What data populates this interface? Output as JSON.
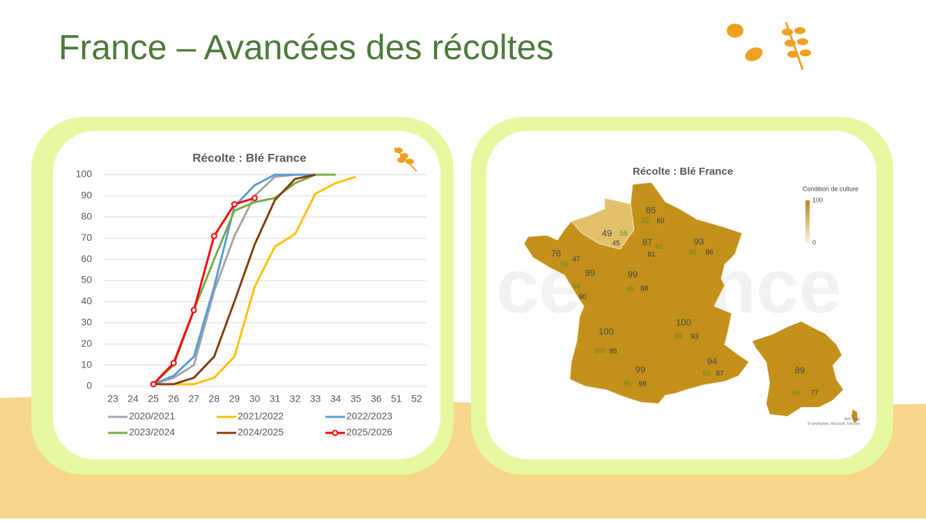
{
  "header": {
    "title": "France – Avancées des récoltes"
  },
  "chart_data": {
    "type": "line",
    "title": "Récolte : Blé France",
    "categories": [
      "23",
      "24",
      "25",
      "26",
      "27",
      "28",
      "29",
      "30",
      "31",
      "32",
      "33",
      "34",
      "35",
      "36",
      "51",
      "52"
    ],
    "ylim": [
      0,
      100
    ],
    "yticks": [
      0,
      10,
      20,
      30,
      40,
      50,
      60,
      70,
      80,
      90,
      100
    ],
    "grid": true,
    "legend": "bottom",
    "series": [
      {
        "name": "2020/2021",
        "color": "#a5a5a5",
        "values": [
          null,
          null,
          1,
          4,
          10,
          45,
          71,
          90,
          99,
          100,
          100,
          null,
          null,
          null,
          null,
          null
        ]
      },
      {
        "name": "2021/2022",
        "color": "#ffc000",
        "values": [
          null,
          null,
          1,
          1,
          1,
          4,
          14,
          47,
          66,
          72,
          91,
          96,
          99,
          null,
          null,
          null
        ]
      },
      {
        "name": "2022/2023",
        "color": "#5b9bd5",
        "values": [
          null,
          null,
          1,
          5,
          14,
          47,
          85,
          95,
          100,
          100,
          100,
          null,
          null,
          null,
          null,
          null
        ]
      },
      {
        "name": "2023/2024",
        "color": "#70ad47",
        "values": [
          null,
          null,
          1,
          10,
          36,
          60,
          83,
          87,
          89,
          96,
          100,
          100,
          null,
          null,
          null,
          null
        ]
      },
      {
        "name": "2024/2025",
        "color": "#843c0c",
        "values": [
          null,
          null,
          1,
          1,
          4,
          14,
          40,
          67,
          88,
          98,
          100,
          null,
          null,
          null,
          null,
          null
        ]
      },
      {
        "name": "2025/2026",
        "color": "#ff0000",
        "marker": true,
        "values": [
          null,
          null,
          1,
          11,
          36,
          71,
          86,
          89,
          null,
          null,
          null,
          null,
          null,
          null,
          null,
          null
        ]
      }
    ]
  },
  "map": {
    "title": "Récolte : Blé France",
    "color": "#c3901a",
    "legend_title": "Condition de culture",
    "legend_ticks": [
      100,
      0
    ],
    "regions": [
      [
        85,
        82,
        60
      ],
      [
        49,
        55,
        45
      ],
      [
        87,
        81,
        81
      ],
      [
        93,
        90,
        86
      ],
      [
        76,
        66,
        47
      ],
      [
        99,
        94,
        90
      ],
      [
        99,
        99,
        88
      ],
      [
        100,
        99,
        93
      ],
      [
        100,
        100,
        95
      ],
      [
        94,
        83,
        87
      ],
      [
        99,
        99,
        98
      ],
      [
        89,
        86,
        77
      ]
    ],
    "credits": [
      "Avec Bing",
      "© GeoNames, Microsoft, TomTom"
    ]
  }
}
